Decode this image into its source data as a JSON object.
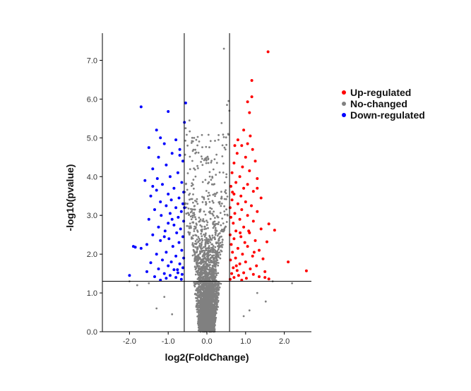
{
  "chart_data": {
    "type": "scatter",
    "title": "",
    "xlabel": "log2(FoldChange)",
    "ylabel": "-log10(pvalue)",
    "xlim": [
      -2.7,
      2.7
    ],
    "ylim": [
      0,
      7.7
    ],
    "xticks": [
      {
        "value": -2.0,
        "label": "-2.0"
      },
      {
        "value": -1.0,
        "label": "-1.0"
      },
      {
        "value": 0.0,
        "label": "0.0"
      },
      {
        "value": 1.0,
        "label": "1.0"
      },
      {
        "value": 2.0,
        "label": "2.0"
      }
    ],
    "yticks": [
      {
        "value": 0.0,
        "label": "0.0"
      },
      {
        "value": 1.0,
        "label": "1.0"
      },
      {
        "value": 2.0,
        "label": "2.0"
      },
      {
        "value": 3.0,
        "label": "3.0"
      },
      {
        "value": 4.0,
        "label": "4.0"
      },
      {
        "value": 5.0,
        "label": "5.0"
      },
      {
        "value": 6.0,
        "label": "6.0"
      },
      {
        "value": 7.0,
        "label": "7.0"
      }
    ],
    "thresholds": {
      "x": [
        -0.585,
        0.585
      ],
      "y": 1.301
    },
    "grid": false,
    "legend_position": "right",
    "series": [
      {
        "name": "Up-regulated",
        "color": "#ff0000",
        "points": [
          [
            1.58,
            7.22
          ],
          [
            1.16,
            6.48
          ],
          [
            1.16,
            6.06
          ],
          [
            1.05,
            5.93
          ],
          [
            1.1,
            5.65
          ],
          [
            0.95,
            5.2
          ],
          [
            1.12,
            5.05
          ],
          [
            0.8,
            4.95
          ],
          [
            1.05,
            4.85
          ],
          [
            0.9,
            4.8
          ],
          [
            1.18,
            4.7
          ],
          [
            0.78,
            4.6
          ],
          [
            1.0,
            4.5
          ],
          [
            1.25,
            4.4
          ],
          [
            0.7,
            4.35
          ],
          [
            0.92,
            4.25
          ],
          [
            1.1,
            4.15
          ],
          [
            0.65,
            4.1
          ],
          [
            0.85,
            4.0
          ],
          [
            1.3,
            3.95
          ],
          [
            0.75,
            3.85
          ],
          [
            1.05,
            3.8
          ],
          [
            0.62,
            3.75
          ],
          [
            0.95,
            3.7
          ],
          [
            1.2,
            3.62
          ],
          [
            0.7,
            3.55
          ],
          [
            0.88,
            3.5
          ],
          [
            1.4,
            3.45
          ],
          [
            0.65,
            3.4
          ],
          [
            1.0,
            3.35
          ],
          [
            0.8,
            3.3
          ],
          [
            1.15,
            3.25
          ],
          [
            0.6,
            3.2
          ],
          [
            0.9,
            3.15
          ],
          [
            1.3,
            3.1
          ],
          [
            0.72,
            3.05
          ],
          [
            1.05,
            3.0
          ],
          [
            0.62,
            2.95
          ],
          [
            0.85,
            2.9
          ],
          [
            1.2,
            2.85
          ],
          [
            1.6,
            2.78
          ],
          [
            0.68,
            2.8
          ],
          [
            1.75,
            2.62
          ],
          [
            0.95,
            2.7
          ],
          [
            1.4,
            2.65
          ],
          [
            0.75,
            2.6
          ],
          [
            1.1,
            2.55
          ],
          [
            0.6,
            2.5
          ],
          [
            0.88,
            2.45
          ],
          [
            1.55,
            2.32
          ],
          [
            0.7,
            2.4
          ],
          [
            1.25,
            2.35
          ],
          [
            0.98,
            2.3
          ],
          [
            0.63,
            2.25
          ],
          [
            1.05,
            2.2
          ],
          [
            0.8,
            2.15
          ],
          [
            1.35,
            2.1
          ],
          [
            0.66,
            2.05
          ],
          [
            0.92,
            2.0
          ],
          [
            1.18,
            1.95
          ],
          [
            0.74,
            1.9
          ],
          [
            1.45,
            1.88
          ],
          [
            0.61,
            1.85
          ],
          [
            1.0,
            1.8
          ],
          [
            2.1,
            1.8
          ],
          [
            0.85,
            1.75
          ],
          [
            1.28,
            1.7
          ],
          [
            0.68,
            1.65
          ],
          [
            1.12,
            1.62
          ],
          [
            0.78,
            1.58
          ],
          [
            2.57,
            1.57
          ],
          [
            1.5,
            1.55
          ],
          [
            0.95,
            1.52
          ],
          [
            0.64,
            1.5
          ],
          [
            1.2,
            1.48
          ],
          [
            0.82,
            1.45
          ],
          [
            1.35,
            1.42
          ],
          [
            0.7,
            1.4
          ],
          [
            1.02,
            1.38
          ],
          [
            0.6,
            1.35
          ],
          [
            1.5,
            1.4
          ],
          [
            0.9,
            1.33
          ],
          [
            1.6,
            1.36
          ],
          [
            0.76,
            1.7
          ],
          [
            1.08,
            2.6
          ],
          [
            0.66,
            3.6
          ],
          [
            0.72,
            4.8
          ],
          [
            1.3,
            3.7
          ],
          [
            0.86,
            2.55
          ],
          [
            1.22,
            2.05
          ]
        ]
      },
      {
        "name": "No-changed",
        "color": "#808080",
        "generator": {
          "count": 3200,
          "seed": 7,
          "jitter": 0.14
        },
        "points": [
          [
            0.44,
            7.3
          ],
          [
            0.56,
            5.95
          ],
          [
            0.52,
            5.85
          ],
          [
            0.58,
            5.7
          ],
          [
            -0.45,
            5.45
          ],
          [
            0.38,
            5.38
          ],
          [
            -0.55,
            5.25
          ],
          [
            0.55,
            5.1
          ],
          [
            -0.38,
            5.0
          ],
          [
            0.3,
            4.95
          ],
          [
            -0.5,
            4.8
          ],
          [
            0.48,
            4.7
          ],
          [
            -0.3,
            4.6
          ],
          [
            1.52,
            0.78
          ],
          [
            -1.1,
            0.9
          ],
          [
            -2.0,
            1.3
          ],
          [
            1.3,
            1.0
          ],
          [
            -1.5,
            1.25
          ],
          [
            1.7,
            1.3
          ],
          [
            -1.8,
            1.2
          ],
          [
            2.2,
            1.25
          ],
          [
            -1.3,
            0.6
          ],
          [
            1.1,
            0.55
          ],
          [
            -0.9,
            0.45
          ],
          [
            0.95,
            0.4
          ]
        ]
      },
      {
        "name": "Down-regulated",
        "color": "#0000ff",
        "points": [
          [
            -1.7,
            5.8
          ],
          [
            -1.0,
            5.68
          ],
          [
            -0.55,
            5.9
          ],
          [
            -0.58,
            5.4
          ],
          [
            -1.3,
            5.2
          ],
          [
            -1.2,
            5.0
          ],
          [
            -0.8,
            4.95
          ],
          [
            -1.1,
            4.85
          ],
          [
            -1.5,
            4.75
          ],
          [
            -0.7,
            4.7
          ],
          [
            -0.9,
            4.6
          ],
          [
            -1.25,
            4.5
          ],
          [
            -0.62,
            4.4
          ],
          [
            -1.05,
            4.3
          ],
          [
            -1.4,
            4.2
          ],
          [
            -0.75,
            4.1
          ],
          [
            -0.95,
            4.0
          ],
          [
            -1.6,
            3.9
          ],
          [
            -0.65,
            3.85
          ],
          [
            -1.15,
            3.8
          ],
          [
            -0.85,
            3.7
          ],
          [
            -1.3,
            3.65
          ],
          [
            -0.6,
            3.6
          ],
          [
            -1.0,
            3.55
          ],
          [
            -1.45,
            3.5
          ],
          [
            -0.72,
            3.45
          ],
          [
            -0.92,
            3.4
          ],
          [
            -1.2,
            3.35
          ],
          [
            -0.62,
            3.3
          ],
          [
            -1.05,
            3.25
          ],
          [
            -0.8,
            3.2
          ],
          [
            -1.35,
            3.15
          ],
          [
            -0.66,
            3.1
          ],
          [
            -0.95,
            3.05
          ],
          [
            -1.18,
            3.0
          ],
          [
            -0.74,
            2.95
          ],
          [
            -1.5,
            2.9
          ],
          [
            -0.6,
            2.85
          ],
          [
            -1.0,
            2.8
          ],
          [
            -0.85,
            2.75
          ],
          [
            -1.25,
            2.7
          ],
          [
            -0.68,
            2.65
          ],
          [
            -1.08,
            2.6
          ],
          [
            -0.78,
            2.55
          ],
          [
            -1.4,
            2.5
          ],
          [
            -0.62,
            2.45
          ],
          [
            -0.98,
            2.4
          ],
          [
            -1.2,
            2.35
          ],
          [
            -0.72,
            2.3
          ],
          [
            -1.55,
            2.25
          ],
          [
            -0.88,
            2.2
          ],
          [
            -1.9,
            2.2
          ],
          [
            -1.85,
            2.18
          ],
          [
            -1.7,
            2.15
          ],
          [
            -0.65,
            2.1
          ],
          [
            -1.05,
            2.05
          ],
          [
            -1.3,
            2.0
          ],
          [
            -0.8,
            1.95
          ],
          [
            -0.6,
            1.9
          ],
          [
            -1.15,
            1.85
          ],
          [
            -0.92,
            1.8
          ],
          [
            -1.45,
            1.78
          ],
          [
            -0.7,
            1.75
          ],
          [
            -1.0,
            1.7
          ],
          [
            -0.62,
            1.65
          ],
          [
            -1.25,
            1.62
          ],
          [
            -0.85,
            1.6
          ],
          [
            -1.55,
            1.55
          ],
          [
            -0.75,
            1.52
          ],
          [
            -1.1,
            1.5
          ],
          [
            -0.64,
            1.48
          ],
          [
            -0.95,
            1.45
          ],
          [
            -2.0,
            1.45
          ],
          [
            -1.35,
            1.42
          ],
          [
            -0.8,
            1.4
          ],
          [
            -1.05,
            1.38
          ],
          [
            -0.66,
            1.35
          ],
          [
            -1.2,
            1.33
          ],
          [
            -0.9,
            2.9
          ],
          [
            -1.28,
            3.95
          ],
          [
            -0.7,
            4.55
          ],
          [
            -0.58,
            3.2
          ],
          [
            -1.1,
            2.45
          ],
          [
            -0.76,
            1.6
          ],
          [
            -1.4,
            3.75
          ]
        ]
      }
    ]
  }
}
